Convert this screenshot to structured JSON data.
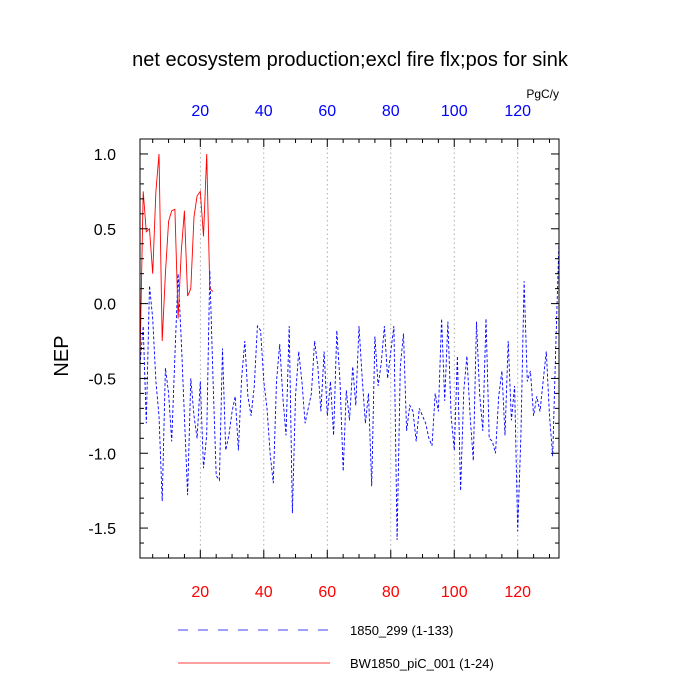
{
  "chart_data": {
    "type": "line",
    "title": "net ecosystem production;excl fire flx;pos for sink",
    "ylabel": "NEP",
    "units_label": "PgC/y",
    "xlim": [
      1,
      133
    ],
    "ylim": [
      -1.7,
      1.1
    ],
    "x_ticks": [
      "20",
      "40",
      "60",
      "80",
      "100",
      "120"
    ],
    "top_ticks": [
      "20",
      "40",
      "60",
      "80",
      "100",
      "120"
    ],
    "y_ticks": [
      "1.0",
      "0.5",
      "0.0",
      "-0.5",
      "-1.0",
      "-1.5"
    ],
    "grid": "vertical dotted at top-axis ticks",
    "legend_position": "bottom",
    "series": [
      {
        "name": "1850_299 (1-133)",
        "color": "#0000ff",
        "style": "dashed",
        "x_start": 1,
        "values": [
          -0.41,
          -0.15,
          -0.8,
          0.12,
          -0.1,
          -0.52,
          -0.75,
          -1.32,
          -0.43,
          -0.6,
          -0.92,
          -0.35,
          0.2,
          -0.25,
          -0.75,
          -1.28,
          -0.5,
          -0.75,
          -0.9,
          -0.52,
          -1.1,
          -0.88,
          0.22,
          -0.5,
          -1.15,
          -1.18,
          -0.3,
          -0.98,
          -0.88,
          -0.72,
          -0.62,
          -0.98,
          -0.5,
          -0.25,
          -0.62,
          -0.75,
          -0.55,
          -0.15,
          -0.18,
          -0.52,
          -0.7,
          -1.0,
          -1.2,
          -0.52,
          -0.27,
          -0.62,
          -0.88,
          -0.15,
          -1.4,
          -0.62,
          -0.32,
          -0.52,
          -0.8,
          -0.7,
          -0.6,
          -0.25,
          -0.42,
          -0.72,
          -0.32,
          -0.75,
          -0.52,
          -0.88,
          -0.18,
          -0.52,
          -1.12,
          -0.58,
          -0.78,
          -0.42,
          -0.68,
          -0.15,
          -0.5,
          -0.8,
          -0.6,
          -1.22,
          -0.22,
          -0.55,
          -0.4,
          -0.15,
          -0.5,
          -0.32,
          -0.15,
          -1.58,
          -0.42,
          -0.2,
          -0.85,
          -0.68,
          -0.72,
          -0.92,
          -0.7,
          -0.75,
          -0.8,
          -0.9,
          -0.95,
          -0.6,
          -0.72,
          -0.1,
          -0.65,
          -0.12,
          -0.75,
          -0.98,
          -0.35,
          -1.25,
          -0.58,
          -0.35,
          -0.75,
          -1.05,
          -0.12,
          -0.6,
          -0.85,
          -0.1,
          -0.9,
          -0.92,
          -1.0,
          -0.62,
          -0.45,
          -0.88,
          -0.25,
          -0.78,
          -0.55,
          -1.52,
          -0.88,
          0.15,
          -0.52,
          -0.45,
          -0.75,
          -0.62,
          -0.72,
          -0.52,
          -0.32,
          -0.75,
          -1.02,
          -0.28,
          0.42
        ]
      },
      {
        "name": "BW1850_piC_001 (1-24)",
        "color": "#ff0000",
        "style": "solid",
        "x_start": 1,
        "values": [
          -0.38,
          0.75,
          0.48,
          0.5,
          0.2,
          0.75,
          1.0,
          -0.25,
          0.2,
          0.55,
          0.62,
          0.63,
          -0.1,
          0.35,
          0.62,
          0.05,
          0.1,
          0.58,
          0.72,
          0.75,
          0.45,
          1.0,
          0.1,
          0.08
        ]
      }
    ]
  }
}
